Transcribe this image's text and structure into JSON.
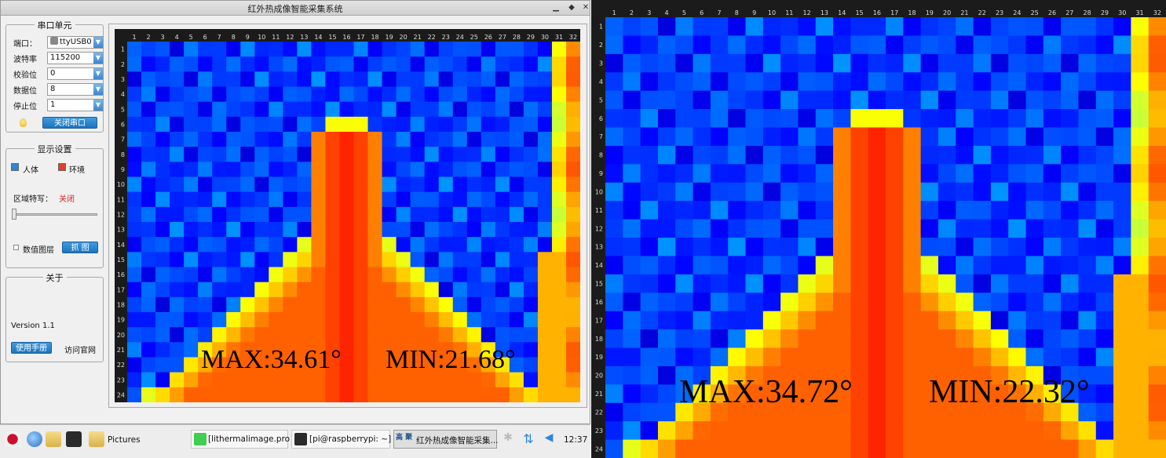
{
  "window": {
    "title": "红外热成像智能采集系统",
    "controls": {
      "minimize": "▁",
      "maximize": "◆",
      "close": "✕"
    }
  },
  "serial": {
    "group_title": "串口单元",
    "fields": [
      {
        "label": "端口：",
        "value": "ttyUSB0",
        "icon": "usb-icon"
      },
      {
        "label": "波特率",
        "value": "115200"
      },
      {
        "label": "校验位",
        "value": "0"
      },
      {
        "label": "数据位",
        "value": "8"
      },
      {
        "label": "停止位",
        "value": "1"
      }
    ],
    "close_port_label": "关闭串口"
  },
  "display": {
    "group_title": "显示设置",
    "legend_human": "人体",
    "legend_env": "环境",
    "region_label": "区域特写：",
    "region_value": "关闭",
    "value_layer_label": "数值图层",
    "capture_label": "抓 图",
    "colors": {
      "human": "#2e86d6",
      "env": "#e0402a",
      "region_value": "#e02020"
    }
  },
  "about": {
    "group_title": "关于",
    "version": "Version 1.1",
    "manual_label": "使用手册",
    "website_label": "访问官网"
  },
  "left_view": {
    "max_label": "MAX:34.61°",
    "min_label": "MIN:21.68°",
    "columns": [
      "1",
      "2",
      "3",
      "4",
      "5",
      "6",
      "7",
      "8",
      "9",
      "10",
      "11",
      "12",
      "13",
      "14",
      "15",
      "16",
      "17",
      "18",
      "19",
      "20",
      "21",
      "22",
      "23",
      "24",
      "25",
      "26",
      "27",
      "28",
      "29",
      "30",
      "31",
      "32"
    ],
    "rows": [
      "1",
      "2",
      "3",
      "4",
      "5",
      "6",
      "7",
      "8",
      "9",
      "10",
      "11",
      "12",
      "13",
      "14",
      "15",
      "16",
      "17",
      "18",
      "19",
      "20",
      "21",
      "22",
      "23",
      "24"
    ]
  },
  "taskbar": {
    "items": [
      {
        "name": "raspberry-menu-icon"
      },
      {
        "name": "browser-icon"
      },
      {
        "name": "file-manager-icon"
      },
      {
        "name": "terminal-icon"
      }
    ],
    "pictures_label": "Pictures",
    "task_qt": "[lithermalimage.pro ...",
    "task_terminal": "[pi@raspberrypi: ~]",
    "task_app": "红外热成像智能采集...",
    "brand": "高 聚",
    "clock": "12:37",
    "colors": {
      "active_task": "#dedede"
    }
  },
  "right_view": {
    "max_label": "MAX:34.72°",
    "min_label": "MIN:22.32°",
    "columns": [
      "1",
      "2",
      "3",
      "4",
      "5",
      "6",
      "7",
      "8",
      "9",
      "10",
      "11",
      "12",
      "13",
      "14",
      "15",
      "16",
      "17",
      "18",
      "19",
      "20",
      "21",
      "22",
      "23",
      "24",
      "25",
      "26",
      "27",
      "28",
      "29",
      "30",
      "31",
      "32"
    ],
    "rows": [
      "1",
      "2",
      "3",
      "4",
      "5",
      "6",
      "7",
      "8",
      "9",
      "10",
      "11",
      "12",
      "13",
      "14",
      "15",
      "16",
      "17",
      "18",
      "19",
      "20",
      "21",
      "22",
      "23",
      "24"
    ]
  }
}
